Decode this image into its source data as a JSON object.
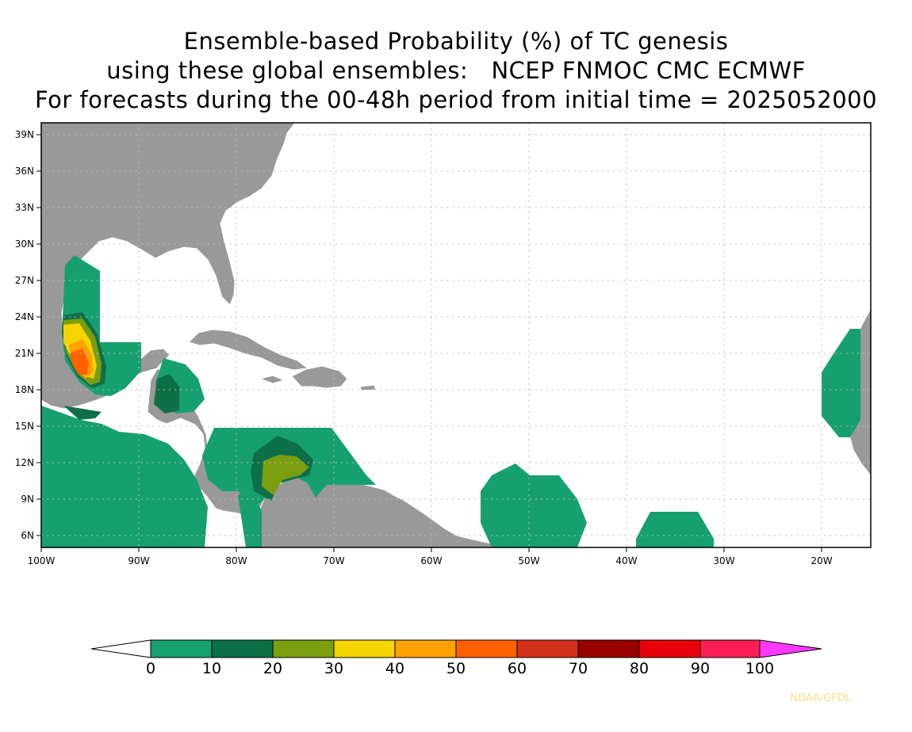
{
  "title": {
    "line1": "Ensemble-based Probability (%) of TC genesis",
    "line2": "using these global ensembles:   NCEP FNMOC CMC ECMWF",
    "line3": "For forecasts during the 00-48h period from initial time = 2025052000"
  },
  "map": {
    "lon_range": [
      -100,
      -15
    ],
    "lat_range": [
      5,
      40
    ],
    "lat_ticks": [
      "39N",
      "36N",
      "33N",
      "30N",
      "27N",
      "24N",
      "21N",
      "18N",
      "15N",
      "12N",
      "9N",
      "6N"
    ],
    "lon_ticks": [
      "100W",
      "90W",
      "80W",
      "70W",
      "60W",
      "50W",
      "40W",
      "30W",
      "20W"
    ],
    "land_color": "#999999",
    "ocean_color": "#ffffff",
    "border_color": "#ffffff",
    "grid_color": "#bbbbbb"
  },
  "colorbar": {
    "labels": [
      "0",
      "10",
      "20",
      "30",
      "40",
      "50",
      "60",
      "70",
      "80",
      "90",
      "100"
    ],
    "colors": [
      "#ffffff",
      "#17a06f",
      "#0d6f47",
      "#7b9e0f",
      "#f5d400",
      "#ffa200",
      "#ff6000",
      "#d2321a",
      "#990000",
      "#e8000b",
      "#ff1d55",
      "#ff38ff"
    ]
  },
  "credit": "NOAA/GFDL"
}
